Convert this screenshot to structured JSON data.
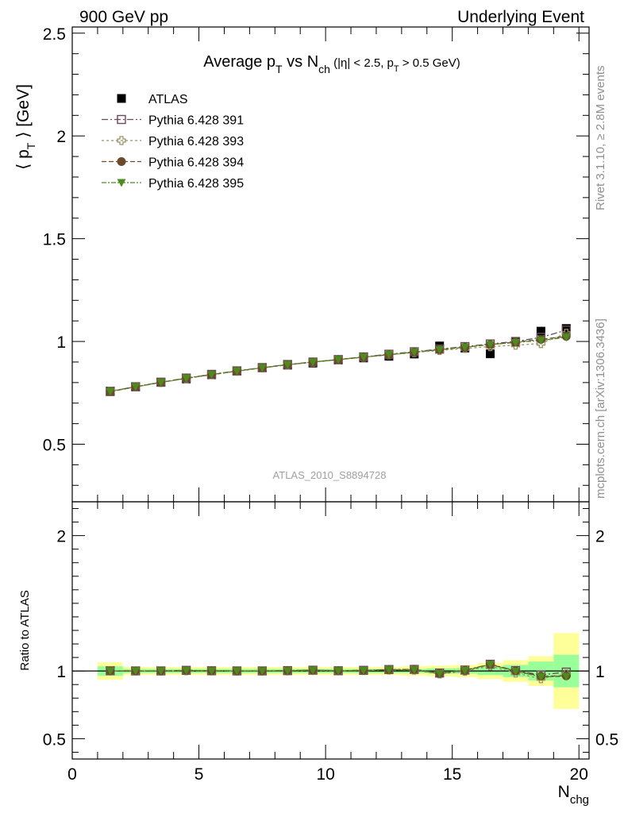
{
  "header": {
    "left": "900 GeV pp",
    "right": "Underlying Event"
  },
  "side_labels": {
    "rivet": "Rivet 3.1.10, ≥ 2.8M events",
    "mcplots": "mcplots.cern.ch [arXiv:1306.3436]"
  },
  "watermark": "ATLAS_2010_S8894728",
  "colors": {
    "data": "#000000",
    "p391": "#6b4a5a",
    "p393": "#9b9466",
    "p394": "#6b4a2e",
    "p395": "#4f8a1f",
    "band_inner": "#99ff99",
    "band_outer": "#ffff99"
  },
  "chart_data": [
    {
      "type": "scatter",
      "title_parts": {
        "a": "Average p",
        "a_sub": "T",
        "b": " vs N",
        "b_sub": "ch",
        "c": " (|η| < 2.5, p",
        "c_sub": "T",
        "d": " > 0.5 GeV)"
      },
      "ylabel_parts": {
        "a": "⟨ p",
        "sub": "T",
        "b": " ⟩ [GeV]"
      },
      "xlim": [
        0,
        20.4
      ],
      "ylim": [
        0.22,
        2.53
      ],
      "yticks": [
        0.5,
        1,
        1.5,
        2,
        2.5
      ],
      "ytick_labels": [
        "0.5",
        "1",
        "1.5",
        "2",
        "2.5"
      ],
      "legend_position": "top-left",
      "x": [
        1.5,
        2.5,
        3.5,
        4.5,
        5.5,
        6.5,
        7.5,
        8.5,
        9.5,
        10.5,
        11.5,
        12.5,
        13.5,
        14.5,
        15.5,
        16.5,
        17.5,
        18.5,
        19.5
      ],
      "series": [
        {
          "name": "ATLAS",
          "key": "data",
          "values": [
            0.756,
            0.779,
            0.801,
            0.818,
            0.838,
            0.856,
            0.872,
            0.885,
            0.895,
            0.91,
            0.92,
            0.928,
            0.939,
            0.978,
            0.968,
            0.94,
            0.997,
            1.05,
            1.063
          ]
        },
        {
          "name": "Pythia 6.428 391",
          "key": "p391",
          "values": [
            0.758,
            0.78,
            0.802,
            0.822,
            0.84,
            0.857,
            0.873,
            0.888,
            0.9,
            0.912,
            0.925,
            0.938,
            0.95,
            0.963,
            0.975,
            0.988,
            1.0,
            1.02,
            1.055
          ]
        },
        {
          "name": "Pythia 6.428 393",
          "key": "p393",
          "values": [
            0.757,
            0.779,
            0.8,
            0.82,
            0.838,
            0.855,
            0.871,
            0.886,
            0.899,
            0.911,
            0.923,
            0.935,
            0.946,
            0.956,
            0.966,
            0.975,
            0.982,
            0.99,
            1.04
          ]
        },
        {
          "name": "Pythia 6.428 394",
          "key": "p394",
          "values": [
            0.756,
            0.779,
            0.801,
            0.821,
            0.839,
            0.856,
            0.872,
            0.887,
            0.9,
            0.912,
            0.924,
            0.936,
            0.948,
            0.96,
            0.972,
            0.985,
            0.997,
            1.01,
            1.025
          ]
        },
        {
          "name": "Pythia 6.428 395",
          "key": "p395",
          "values": [
            0.757,
            0.78,
            0.801,
            0.821,
            0.839,
            0.856,
            0.872,
            0.887,
            0.9,
            0.912,
            0.924,
            0.936,
            0.948,
            0.96,
            0.972,
            0.985,
            0.995,
            1.005,
            1.02
          ]
        }
      ]
    },
    {
      "type": "scatter",
      "ylabel": "Ratio to ATLAS",
      "xlabel_parts": {
        "a": "N",
        "sub": "chg"
      },
      "xlim": [
        0,
        20.4
      ],
      "ylim": [
        0.35,
        2.25
      ],
      "xticks": [
        0,
        5,
        10,
        15,
        20
      ],
      "xtick_labels": [
        "0",
        "5",
        "10",
        "15",
        "20"
      ],
      "yticks": [
        0.5,
        1,
        2
      ],
      "ytick_labels": [
        "0.5",
        "1",
        "2"
      ],
      "x": [
        1.5,
        2.5,
        3.5,
        4.5,
        5.5,
        6.5,
        7.5,
        8.5,
        9.5,
        10.5,
        11.5,
        12.5,
        13.5,
        14.5,
        15.5,
        16.5,
        17.5,
        18.5,
        19.5
      ],
      "band_inner": [
        0.035,
        0.015,
        0.015,
        0.015,
        0.015,
        0.015,
        0.015,
        0.015,
        0.015,
        0.015,
        0.015,
        0.015,
        0.015,
        0.02,
        0.02,
        0.03,
        0.045,
        0.07,
        0.12
      ],
      "band_outer": [
        0.065,
        0.03,
        0.03,
        0.03,
        0.03,
        0.03,
        0.03,
        0.03,
        0.03,
        0.03,
        0.03,
        0.03,
        0.035,
        0.04,
        0.045,
        0.06,
        0.08,
        0.11,
        0.28
      ],
      "series": [
        {
          "name": "Pythia 6.428 391",
          "key": "p391",
          "values": [
            1.002,
            1.001,
            1.001,
            1.005,
            1.002,
            1.001,
            1.001,
            1.003,
            1.006,
            1.002,
            1.005,
            1.011,
            1.012,
            0.985,
            1.007,
            1.05,
            1.003,
            0.971,
            0.992
          ]
        },
        {
          "name": "Pythia 6.428 393",
          "key": "p393",
          "values": [
            1.001,
            1.0,
            0.999,
            1.002,
            1.0,
            0.999,
            0.999,
            1.001,
            1.004,
            1.001,
            1.003,
            1.008,
            1.007,
            0.978,
            0.998,
            1.037,
            0.985,
            0.943,
            0.978
          ]
        },
        {
          "name": "Pythia 6.428 394",
          "key": "p394",
          "values": [
            1.0,
            1.0,
            1.0,
            1.004,
            1.001,
            1.0,
            1.0,
            1.002,
            1.006,
            1.002,
            1.004,
            1.009,
            1.01,
            0.982,
            1.004,
            1.048,
            1.0,
            0.962,
            0.964
          ]
        },
        {
          "name": "Pythia 6.428 395",
          "key": "p395",
          "values": [
            1.001,
            1.001,
            1.0,
            1.004,
            1.001,
            1.0,
            1.0,
            1.002,
            1.006,
            1.002,
            1.004,
            1.009,
            1.01,
            0.982,
            1.004,
            1.048,
            0.998,
            0.957,
            0.96
          ]
        }
      ]
    }
  ]
}
